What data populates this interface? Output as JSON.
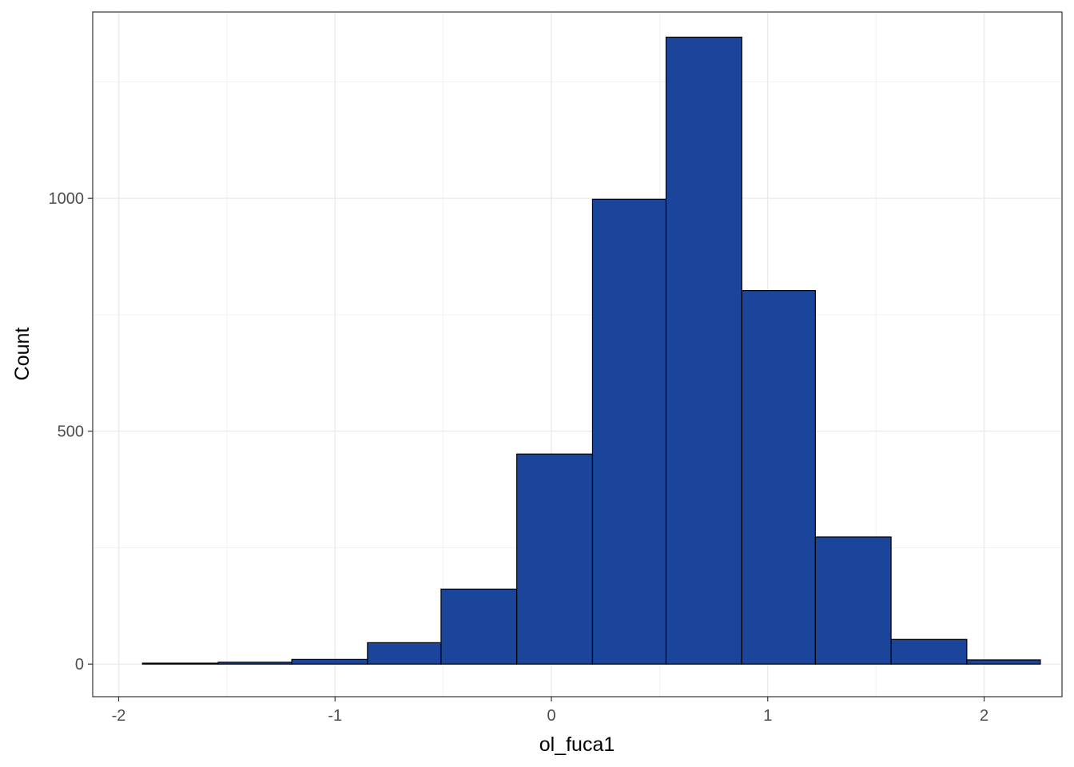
{
  "chart_data": {
    "type": "bar",
    "subtype": "histogram",
    "xlabel": "ol_fuca1",
    "ylabel": "Count",
    "x_ticks": [
      -2,
      -1,
      0,
      1,
      2
    ],
    "x_tick_labels": [
      "-2",
      "-1",
      "0",
      "1",
      "2"
    ],
    "y_ticks": [
      0,
      500,
      1000
    ],
    "y_tick_labels": [
      "0",
      "500",
      "1000"
    ],
    "xlim": [
      -2.12,
      2.36
    ],
    "ylim": [
      -70,
      1400
    ],
    "bins": [
      {
        "x0": -1.89,
        "x1": -1.54,
        "count": 2
      },
      {
        "x0": -1.54,
        "x1": -1.2,
        "count": 4
      },
      {
        "x0": -1.2,
        "x1": -0.85,
        "count": 10
      },
      {
        "x0": -0.85,
        "x1": -0.51,
        "count": 46
      },
      {
        "x0": -0.51,
        "x1": -0.16,
        "count": 161
      },
      {
        "x0": -0.16,
        "x1": 0.19,
        "count": 451
      },
      {
        "x0": 0.19,
        "x1": 0.53,
        "count": 998
      },
      {
        "x0": 0.53,
        "x1": 0.88,
        "count": 1346
      },
      {
        "x0": 0.88,
        "x1": 1.22,
        "count": 802
      },
      {
        "x0": 1.22,
        "x1": 1.57,
        "count": 273
      },
      {
        "x0": 1.57,
        "x1": 1.92,
        "count": 53
      },
      {
        "x0": 1.92,
        "x1": 2.26,
        "count": 9
      }
    ],
    "bar_fill": "#1a459a",
    "bar_stroke": "#000000",
    "grid": true,
    "legend": "none"
  }
}
